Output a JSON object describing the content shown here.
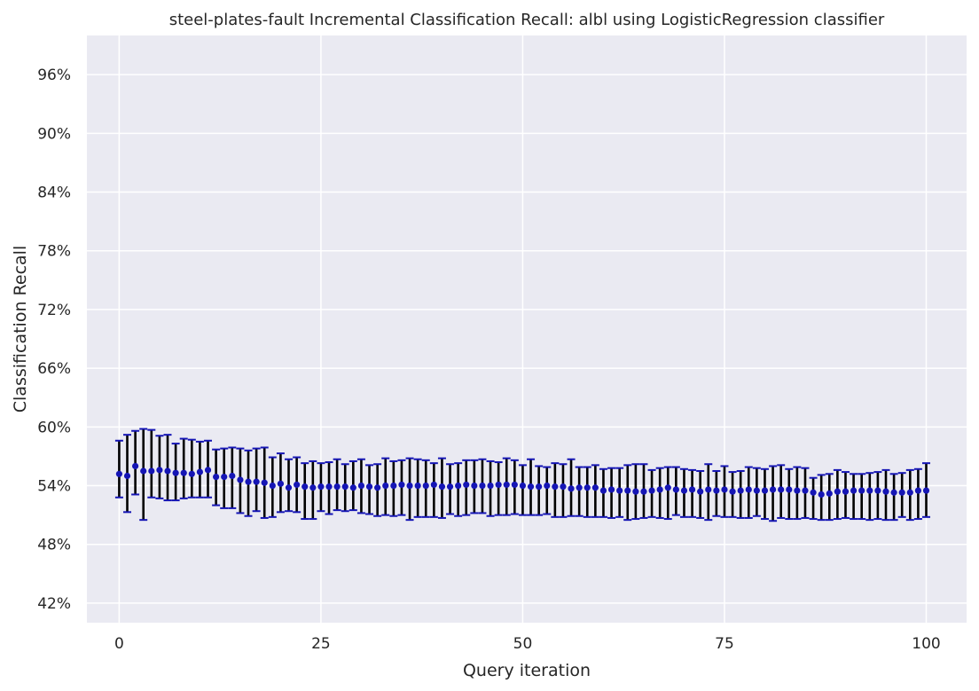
{
  "chart_data": {
    "type": "scatter",
    "title": "steel-plates-fault Incremental Classification Recall: albl using LogisticRegression classifier",
    "xlabel": "Query iteration",
    "ylabel": "Classification Recall",
    "xlim": [
      -4,
      105
    ],
    "ylim": [
      0.4,
      1.0
    ],
    "x_ticks": [
      0,
      25,
      50,
      75,
      100
    ],
    "x_tick_labels": [
      "0",
      "25",
      "50",
      "75",
      "100"
    ],
    "y_ticks": [
      0.42,
      0.48,
      0.54,
      0.6,
      0.66,
      0.72,
      0.78,
      0.84,
      0.9,
      0.96
    ],
    "y_tick_labels": [
      "42%",
      "48%",
      "54%",
      "60%",
      "66%",
      "72%",
      "78%",
      "84%",
      "90%",
      "96%"
    ],
    "grid": true,
    "background": "#eaeaf2",
    "grid_color": "#ffffff",
    "point_color": "#1515b5",
    "errorbar_color": "#000000",
    "cap_color": "#1515b5",
    "series": [
      {
        "x": [
          0,
          1,
          2,
          3,
          4,
          5,
          6,
          7,
          8,
          9,
          10,
          11,
          12,
          13,
          14,
          15,
          16,
          17,
          18,
          19,
          20,
          21,
          22,
          23,
          24,
          25,
          26,
          27,
          28,
          29,
          30,
          31,
          32,
          33,
          34,
          35,
          36,
          37,
          38,
          39,
          40,
          41,
          42,
          43,
          44,
          45,
          46,
          47,
          48,
          49,
          50,
          51,
          52,
          53,
          54,
          55,
          56,
          57,
          58,
          59,
          60,
          61,
          62,
          63,
          64,
          65,
          66,
          67,
          68,
          69,
          70,
          71,
          72,
          73,
          74,
          75,
          76,
          77,
          78,
          79,
          80,
          81,
          82,
          83,
          84,
          85,
          86,
          87,
          88,
          89,
          90,
          91,
          92,
          93,
          94,
          95,
          96,
          97,
          98,
          99,
          100
        ],
        "y": [
          0.552,
          0.55,
          0.56,
          0.555,
          0.555,
          0.556,
          0.555,
          0.553,
          0.553,
          0.552,
          0.554,
          0.556,
          0.549,
          0.549,
          0.55,
          0.546,
          0.544,
          0.544,
          0.543,
          0.54,
          0.542,
          0.538,
          0.541,
          0.539,
          0.538,
          0.539,
          0.539,
          0.539,
          0.539,
          0.538,
          0.54,
          0.539,
          0.538,
          0.54,
          0.54,
          0.541,
          0.54,
          0.54,
          0.54,
          0.541,
          0.539,
          0.539,
          0.54,
          0.541,
          0.54,
          0.54,
          0.54,
          0.541,
          0.541,
          0.541,
          0.54,
          0.539,
          0.539,
          0.54,
          0.539,
          0.539,
          0.537,
          0.538,
          0.538,
          0.538,
          0.535,
          0.536,
          0.535,
          0.535,
          0.534,
          0.534,
          0.535,
          0.536,
          0.538,
          0.536,
          0.535,
          0.536,
          0.534,
          0.536,
          0.535,
          0.536,
          0.534,
          0.535,
          0.536,
          0.535,
          0.535,
          0.536,
          0.536,
          0.536,
          0.535,
          0.535,
          0.533,
          0.531,
          0.532,
          0.534,
          0.534,
          0.535,
          0.535,
          0.535,
          0.535,
          0.534,
          0.533,
          0.533,
          0.533,
          0.535,
          0.535
        ],
        "y_low": [
          0.528,
          0.513,
          0.531,
          0.505,
          0.528,
          0.527,
          0.525,
          0.525,
          0.527,
          0.528,
          0.528,
          0.528,
          0.52,
          0.517,
          0.517,
          0.512,
          0.509,
          0.514,
          0.507,
          0.508,
          0.513,
          0.514,
          0.513,
          0.506,
          0.506,
          0.514,
          0.511,
          0.515,
          0.514,
          0.515,
          0.512,
          0.511,
          0.509,
          0.51,
          0.509,
          0.51,
          0.505,
          0.508,
          0.508,
          0.508,
          0.507,
          0.511,
          0.509,
          0.51,
          0.512,
          0.512,
          0.509,
          0.51,
          0.51,
          0.511,
          0.51,
          0.51,
          0.51,
          0.511,
          0.508,
          0.508,
          0.509,
          0.509,
          0.508,
          0.508,
          0.508,
          0.507,
          0.508,
          0.505,
          0.506,
          0.507,
          0.508,
          0.507,
          0.506,
          0.51,
          0.508,
          0.508,
          0.507,
          0.505,
          0.509,
          0.508,
          0.508,
          0.507,
          0.507,
          0.509,
          0.506,
          0.504,
          0.507,
          0.506,
          0.506,
          0.507,
          0.506,
          0.505,
          0.505,
          0.506,
          0.507,
          0.506,
          0.506,
          0.505,
          0.506,
          0.505,
          0.505,
          0.508,
          0.505,
          0.506,
          0.508
        ],
        "y_high": [
          0.586,
          0.592,
          0.596,
          0.598,
          0.597,
          0.591,
          0.592,
          0.583,
          0.588,
          0.587,
          0.585,
          0.586,
          0.577,
          0.578,
          0.579,
          0.578,
          0.576,
          0.578,
          0.579,
          0.569,
          0.573,
          0.567,
          0.569,
          0.563,
          0.565,
          0.563,
          0.564,
          0.567,
          0.562,
          0.565,
          0.567,
          0.561,
          0.562,
          0.568,
          0.565,
          0.566,
          0.568,
          0.567,
          0.566,
          0.563,
          0.568,
          0.562,
          0.563,
          0.566,
          0.566,
          0.567,
          0.565,
          0.564,
          0.568,
          0.566,
          0.561,
          0.567,
          0.56,
          0.559,
          0.563,
          0.562,
          0.567,
          0.559,
          0.559,
          0.561,
          0.557,
          0.558,
          0.558,
          0.561,
          0.562,
          0.562,
          0.556,
          0.558,
          0.559,
          0.559,
          0.557,
          0.556,
          0.555,
          0.562,
          0.555,
          0.56,
          0.554,
          0.555,
          0.559,
          0.558,
          0.557,
          0.56,
          0.561,
          0.557,
          0.559,
          0.558,
          0.548,
          0.551,
          0.552,
          0.556,
          0.554,
          0.552,
          0.552,
          0.553,
          0.554,
          0.556,
          0.552,
          0.553,
          0.556,
          0.557,
          0.563
        ]
      }
    ]
  }
}
